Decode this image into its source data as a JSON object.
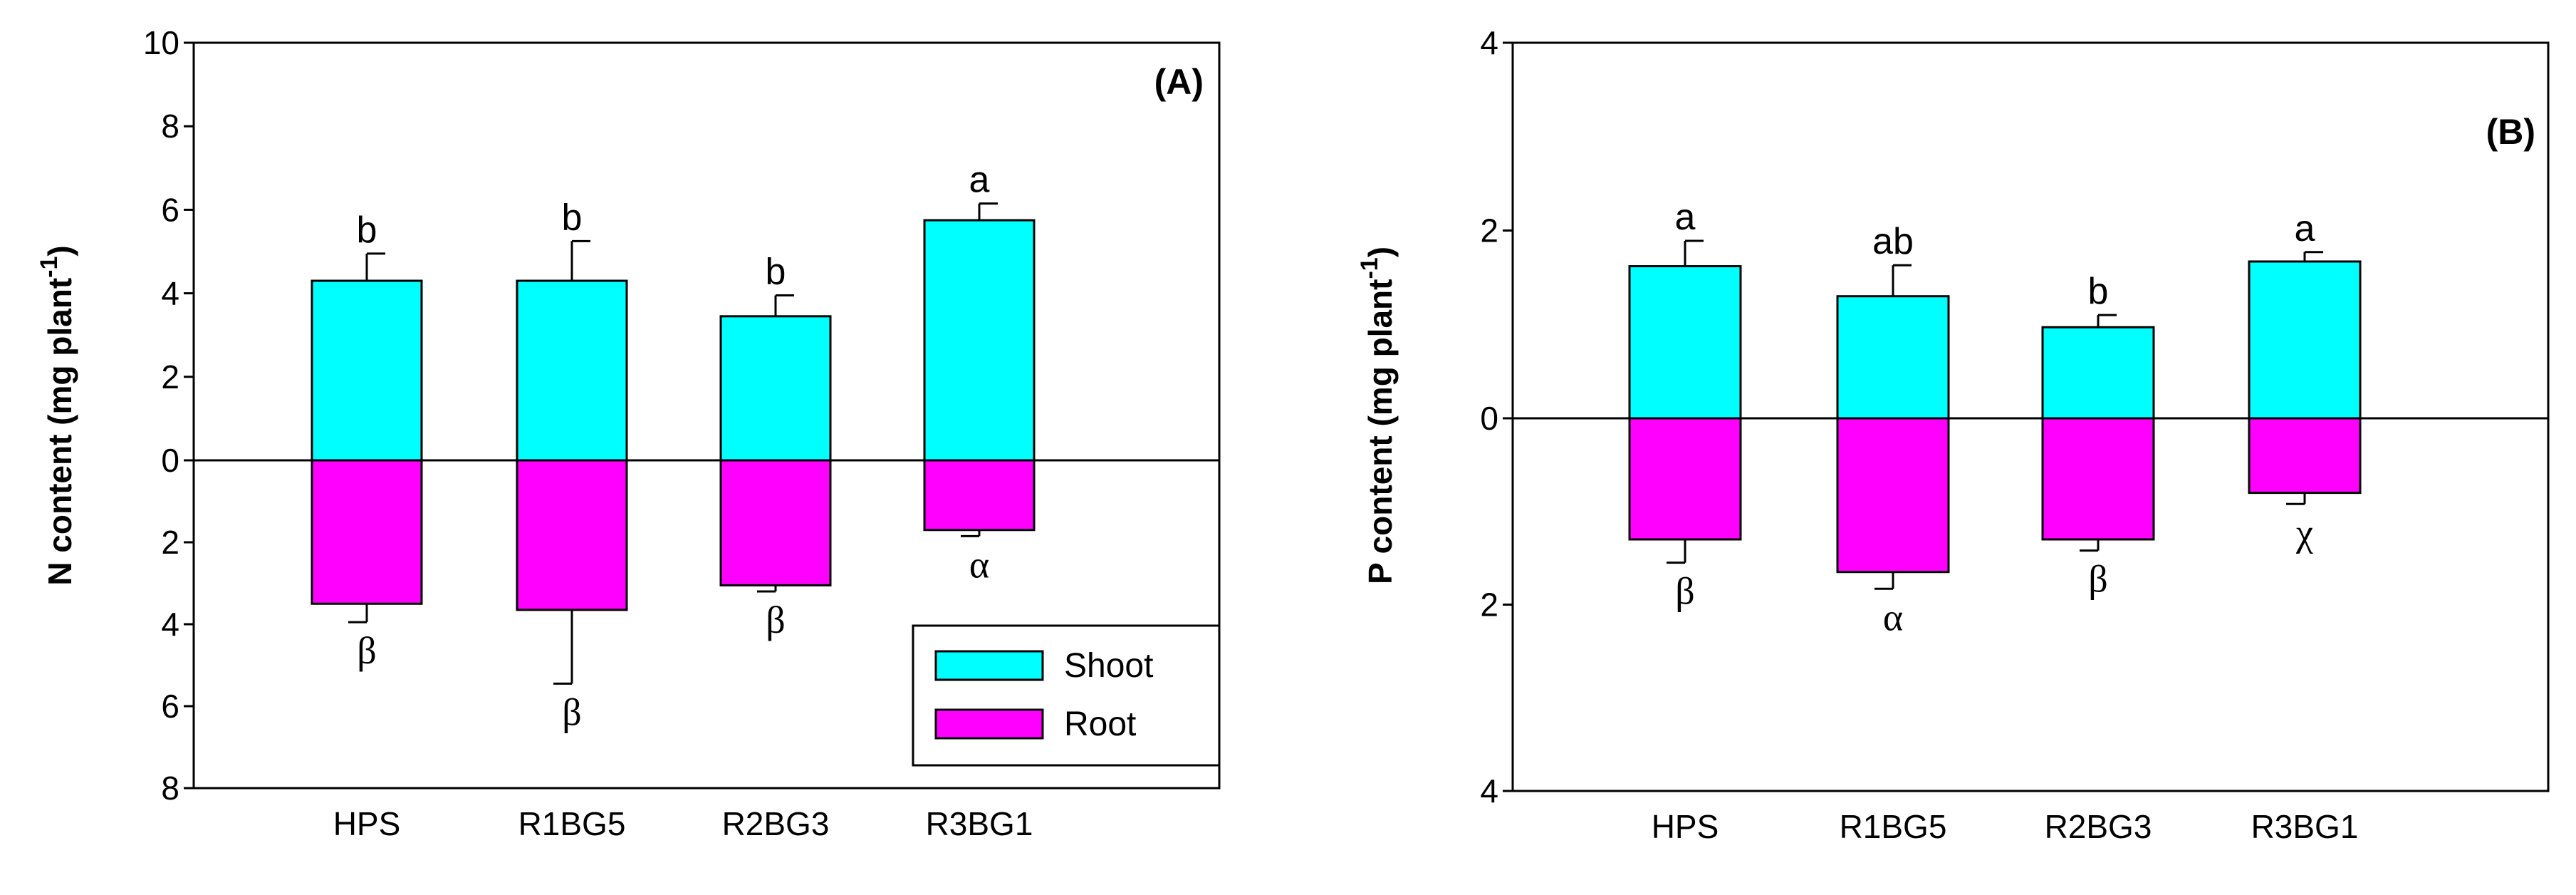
{
  "colors": {
    "shoot": "#00ffff",
    "root": "#ff00ff",
    "line": "#000000"
  },
  "chart_data": [
    {
      "type": "bar",
      "panel_label": "(A)",
      "ylabel_main": "N content (mg plant",
      "ylabel_sup": "-1",
      "ylabel_close": ")",
      "ylim_top": 10,
      "ylim_bottom": 8,
      "yticks_top": [
        {
          "value": 10,
          "label": "10"
        },
        {
          "value": 8,
          "label": "8"
        },
        {
          "value": 6,
          "label": "6"
        },
        {
          "value": 4,
          "label": "4"
        },
        {
          "value": 2,
          "label": "2"
        },
        {
          "value": 0,
          "label": "0"
        }
      ],
      "yticks_bottom": [
        {
          "value": 2,
          "label": "2"
        },
        {
          "value": 4,
          "label": "4"
        },
        {
          "value": 6,
          "label": "6"
        },
        {
          "value": 8,
          "label": "8"
        }
      ],
      "categories": [
        "HPS",
        "R1BG5",
        "R2BG3",
        "R3BG1"
      ],
      "series": [
        {
          "name": "Shoot",
          "values": [
            4.3,
            4.3,
            3.45,
            5.75
          ],
          "errors": [
            0.65,
            0.95,
            0.5,
            0.4
          ],
          "letters": [
            "b",
            "b",
            "b",
            "a"
          ]
        },
        {
          "name": "Root",
          "values": [
            3.5,
            3.65,
            3.05,
            1.7
          ],
          "errors": [
            0.45,
            1.8,
            0.15,
            0.15
          ],
          "letters": [
            "β",
            "β",
            "β",
            "α"
          ]
        }
      ],
      "legend": {
        "position": "bottom-right",
        "entries": [
          "Shoot",
          "Root"
        ]
      }
    },
    {
      "type": "bar",
      "panel_label": "(B)",
      "ylabel_main": "P content (mg plant",
      "ylabel_sup": "-1",
      "ylabel_close": ")",
      "ylim_top": 4,
      "ylim_bottom": 4,
      "yticks_top": [
        {
          "value": 4,
          "label": "4"
        },
        {
          "value": 2,
          "label": "2"
        },
        {
          "value": 0,
          "label": "0"
        }
      ],
      "yticks_bottom": [
        {
          "value": 2,
          "label": "2"
        },
        {
          "value": 4,
          "label": "4"
        }
      ],
      "categories": [
        "HPS",
        "R1BG5",
        "R2BG3",
        "R3BG1"
      ],
      "series": [
        {
          "name": "Shoot",
          "values": [
            1.62,
            1.3,
            0.97,
            1.67
          ],
          "errors": [
            0.27,
            0.33,
            0.13,
            0.1
          ],
          "letters": [
            "a",
            "ab",
            "b",
            "a"
          ]
        },
        {
          "name": "Root",
          "values": [
            1.3,
            1.65,
            1.3,
            0.8
          ],
          "errors": [
            0.25,
            0.18,
            0.12,
            0.12
          ],
          "letters": [
            "β",
            "α",
            "β",
            "χ"
          ]
        }
      ]
    }
  ]
}
